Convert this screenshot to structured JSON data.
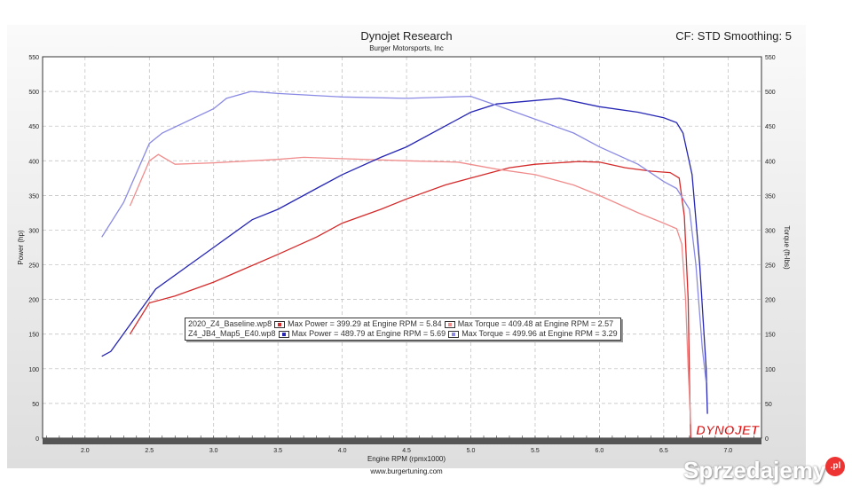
{
  "header": {
    "title": "Dynojet Research",
    "subtitle": "Burger Motorsports, Inc",
    "settings": "CF: STD Smoothing: 5"
  },
  "footer": {
    "url": "www.burgertuning.com",
    "logo": "DYNOJET"
  },
  "watermark": {
    "text": "Sprzedajemy",
    "suffix": ".pl"
  },
  "legend": [
    {
      "file": "2020_Z4_Baseline.wp8",
      "power": "Max Power = 399.29 at Engine RPM = 5.84",
      "torque": "Max Torque = 409.48 at Engine RPM = 2.57"
    },
    {
      "file": "Z4_JB4_Map5_E40.wp8",
      "power": "Max Power = 489.79 at Engine RPM = 5.69",
      "torque": "Max Torque = 499.96 at Engine RPM = 3.29"
    }
  ],
  "chart_data": {
    "type": "line",
    "xlabel": "Engine RPM (rpmx1000)",
    "ylabel": "Power (hp)",
    "y2label": "Torque (ft-lbs)",
    "xlim": [
      1.67,
      7.26
    ],
    "ylim": [
      0,
      550
    ],
    "xticks": [
      "2.0",
      "2.5",
      "3.0",
      "3.5",
      "4.0",
      "4.5",
      "5.0",
      "5.5",
      "6.0",
      "6.5",
      "7.0"
    ],
    "yticks": [
      "0",
      "50",
      "100",
      "150",
      "200",
      "250",
      "300",
      "350",
      "400",
      "450",
      "500",
      "550"
    ],
    "grid": true,
    "series": [
      {
        "name": "2020_Z4_Baseline.wp8 Power",
        "color": "#d42a2a",
        "x": [
          2.35,
          2.5,
          2.7,
          3.0,
          3.5,
          3.8,
          4.0,
          4.3,
          4.5,
          4.8,
          5.0,
          5.3,
          5.5,
          5.84,
          6.0,
          6.2,
          6.4,
          6.55,
          6.62,
          6.66,
          6.69,
          6.7,
          6.71
        ],
        "y": [
          150,
          195,
          205,
          225,
          265,
          290,
          310,
          330,
          345,
          365,
          375,
          390,
          395,
          399,
          398,
          390,
          385,
          383,
          375,
          320,
          200,
          80,
          0
        ]
      },
      {
        "name": "2020_Z4_Baseline.wp8 Torque",
        "color": "#f08c8c",
        "x": [
          2.35,
          2.5,
          2.57,
          2.7,
          3.0,
          3.5,
          3.7,
          4.0,
          4.5,
          4.9,
          5.2,
          5.5,
          5.8,
          6.0,
          6.3,
          6.5,
          6.6,
          6.64,
          6.67,
          6.69,
          6.71
        ],
        "y": [
          335,
          400,
          409,
          395,
          397,
          402,
          405,
          403,
          400,
          398,
          388,
          380,
          365,
          350,
          325,
          310,
          302,
          280,
          200,
          100,
          20
        ]
      },
      {
        "name": "Z4_JB4_Map5_E40.wp8 Power",
        "color": "#2626b4",
        "x": [
          2.13,
          2.2,
          2.55,
          3.0,
          3.3,
          3.5,
          3.8,
          4.0,
          4.3,
          4.5,
          4.8,
          5.0,
          5.2,
          5.5,
          5.69,
          6.0,
          6.3,
          6.5,
          6.6,
          6.65,
          6.72,
          6.78,
          6.83,
          6.84
        ],
        "y": [
          118,
          125,
          215,
          275,
          315,
          330,
          360,
          380,
          405,
          420,
          450,
          470,
          482,
          487,
          490,
          478,
          470,
          462,
          455,
          440,
          380,
          250,
          100,
          35
        ]
      },
      {
        "name": "Z4_JB4_Map5_E40.wp8 Torque",
        "color": "#8a8ae4",
        "x": [
          2.13,
          2.3,
          2.5,
          2.6,
          3.0,
          3.1,
          3.29,
          3.5,
          4.0,
          4.5,
          5.0,
          5.2,
          5.5,
          5.8,
          6.0,
          6.3,
          6.5,
          6.6,
          6.7,
          6.75,
          6.8,
          6.83
        ],
        "y": [
          290,
          340,
          425,
          440,
          475,
          490,
          500,
          497,
          492,
          490,
          493,
          480,
          460,
          440,
          420,
          395,
          370,
          360,
          330,
          250,
          130,
          80
        ]
      }
    ]
  }
}
